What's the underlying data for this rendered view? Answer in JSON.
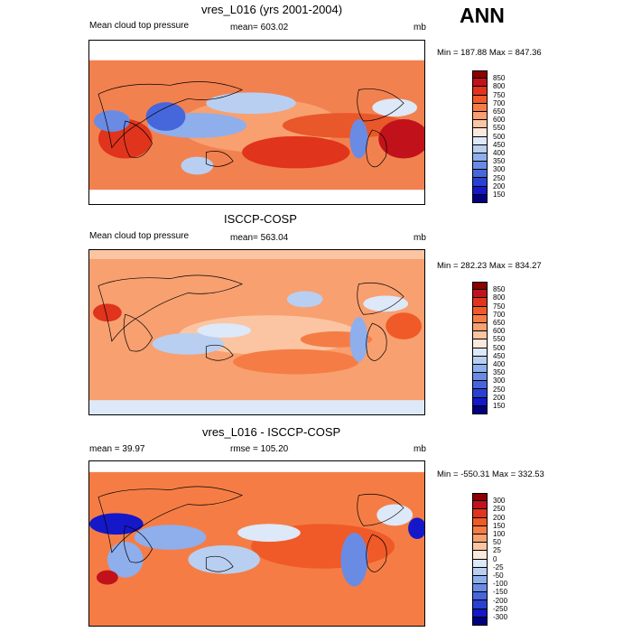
{
  "season": "ANN",
  "panels": [
    {
      "title": "vres_L016 (yrs 2001-2004)",
      "left_label": "Mean cloud top pressure",
      "center_label": "mean= 603.02",
      "right_label": "mb",
      "minmax": "Min = 187.88 Max = 847.36"
    },
    {
      "title": "ISCCP-COSP",
      "left_label": "Mean cloud top pressure",
      "center_label": "mean= 563.04",
      "right_label": "mb",
      "minmax": "Min = 282.23 Max = 834.27"
    },
    {
      "title": "vres_L016 - ISCCP-COSP",
      "left_label": "mean =  39.97",
      "center_label": "rmse = 105.20",
      "right_label": "mb",
      "minmax": "Min = -550.31 Max = 332.53"
    }
  ],
  "colorbars": {
    "field": {
      "levels": [
        "850",
        "800",
        "750",
        "700",
        "650",
        "600",
        "550",
        "500",
        "450",
        "400",
        "350",
        "300",
        "250",
        "200",
        "150"
      ],
      "colors": [
        "#8b0000",
        "#c1121b",
        "#e0341c",
        "#f05a28",
        "#f57d45",
        "#f8a070",
        "#fbc5a3",
        "#fde8dc",
        "#dde8f8",
        "#b8cff1",
        "#8faeec",
        "#6a8be4",
        "#4666dc",
        "#2a40d2",
        "#1418c8",
        "#00007e"
      ]
    },
    "diff": {
      "levels": [
        "300",
        "250",
        "200",
        "150",
        "100",
        "50",
        "25",
        "0",
        "-25",
        "-50",
        "-100",
        "-150",
        "-200",
        "-250",
        "-300"
      ],
      "colors": [
        "#8b0000",
        "#c1121b",
        "#e0341c",
        "#f05a28",
        "#f57d45",
        "#f8a070",
        "#fbc5a3",
        "#fde8dc",
        "#dde8f8",
        "#b8cff1",
        "#8faeec",
        "#6a8be4",
        "#4666dc",
        "#2a40d2",
        "#1418c8",
        "#00007e"
      ]
    }
  },
  "chart_data": {
    "type": "heatmap",
    "projection": "global cylindrical equidistant, land outlines",
    "units": "mb",
    "grid": "off",
    "maps": [
      {
        "title": "vres_L016 (yrs 2001-2004)",
        "variable": "Mean cloud top pressure",
        "mean": 603.02,
        "min": 187.88,
        "max": 847.36,
        "contour_range": [
          150,
          850
        ],
        "contour_interval": 50
      },
      {
        "title": "ISCCP-COSP",
        "variable": "Mean cloud top pressure",
        "mean": 563.04,
        "min": 282.23,
        "max": 834.27,
        "contour_range": [
          150,
          850
        ],
        "contour_interval": 50
      },
      {
        "title": "vres_L016 - ISCCP-COSP",
        "mean": 39.97,
        "rmse": 105.2,
        "min": -550.31,
        "max": 332.53,
        "contour_levels": [
          -300,
          -250,
          -200,
          -150,
          -100,
          -50,
          -25,
          0,
          25,
          50,
          100,
          150,
          200,
          250,
          300
        ]
      }
    ]
  }
}
